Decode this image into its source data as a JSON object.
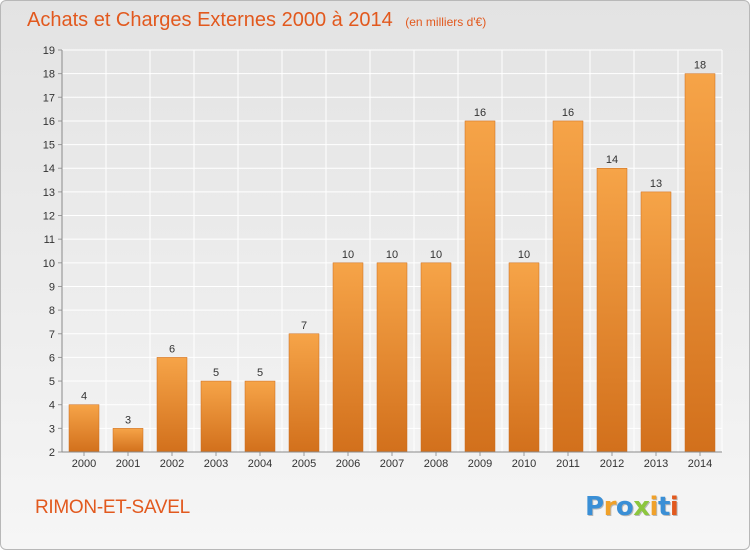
{
  "chart_data": {
    "type": "bar",
    "title": "Achats et Charges Externes 2000 à 2014",
    "unit": "(en milliers d'€)",
    "categories": [
      "2000",
      "2001",
      "2002",
      "2003",
      "2004",
      "2005",
      "2006",
      "2007",
      "2008",
      "2009",
      "2010",
      "2011",
      "2012",
      "2013",
      "2014"
    ],
    "values": [
      4,
      3,
      6,
      5,
      5,
      7,
      10,
      10,
      10,
      16,
      10,
      16,
      14,
      13,
      18
    ],
    "ylim": [
      2,
      19
    ],
    "yticks": [
      2,
      3,
      4,
      5,
      6,
      7,
      8,
      9,
      10,
      11,
      12,
      13,
      14,
      15,
      16,
      17,
      18,
      19
    ],
    "grid": true,
    "bar_color": "#f0983e",
    "bar_color_dark": "#d8741e"
  },
  "footer": {
    "commune": "RIMON-ET-SAVEL",
    "brand_letters": [
      {
        "ch": "P",
        "color": "#3a8fd6"
      },
      {
        "ch": "r",
        "color": "#f0a12a"
      },
      {
        "ch": "o",
        "color": "#3a8fd6"
      },
      {
        "ch": "x",
        "color": "#8cc63f"
      },
      {
        "ch": "i",
        "color": "#f0a12a"
      },
      {
        "ch": "t",
        "color": "#3a8fd6"
      },
      {
        "ch": "i",
        "color": "#e2591e"
      }
    ]
  }
}
